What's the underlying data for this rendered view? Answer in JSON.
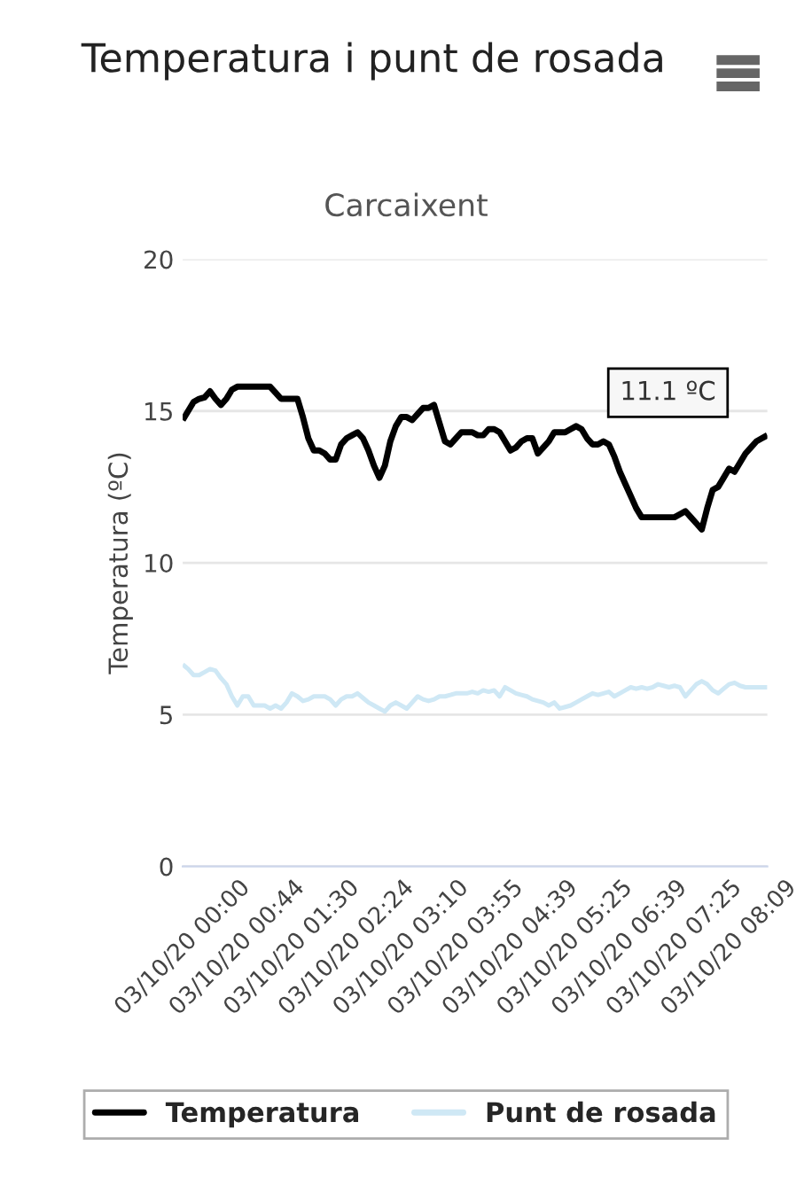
{
  "chart_data": {
    "type": "line",
    "title": "Temperatura i punt de rosada",
    "subtitle": "Carcaixent",
    "ylabel": "Temperatura (ºC)",
    "categories": [
      "03/10/20 00:00",
      null,
      null,
      null,
      null,
      null,
      null,
      null,
      null,
      null,
      "03/10/20 00:44",
      null,
      null,
      null,
      null,
      null,
      null,
      null,
      null,
      null,
      "03/10/20 01:30",
      null,
      null,
      null,
      null,
      null,
      null,
      null,
      null,
      null,
      "03/10/20 02:24",
      null,
      null,
      null,
      null,
      null,
      null,
      null,
      null,
      null,
      "03/10/20 03:10",
      null,
      null,
      null,
      null,
      null,
      null,
      null,
      null,
      null,
      "03/10/20 03:55",
      null,
      null,
      null,
      null,
      null,
      null,
      null,
      null,
      null,
      "03/10/20 04:39",
      null,
      null,
      null,
      null,
      null,
      null,
      null,
      null,
      null,
      "03/10/20 05:25",
      null,
      null,
      null,
      null,
      null,
      null,
      null,
      null,
      null,
      "03/10/20 06:39",
      null,
      null,
      null,
      null,
      null,
      null,
      null,
      null,
      null,
      "03/10/20 07:25",
      null,
      null,
      null,
      null,
      null,
      null,
      null,
      null,
      null,
      "03/10/20 08:09",
      null,
      null,
      null,
      null,
      null,
      null,
      null
    ],
    "series": [
      {
        "name": "Temperatura",
        "color": "#000000",
        "values": [
          14.7,
          15.0,
          15.3,
          15.4,
          15.45,
          15.65,
          15.4,
          15.2,
          15.4,
          15.7,
          15.8,
          15.8,
          15.8,
          15.8,
          15.8,
          15.8,
          15.8,
          15.6,
          15.4,
          15.4,
          15.4,
          15.4,
          14.8,
          14.1,
          13.7,
          13.7,
          13.6,
          13.4,
          13.4,
          13.9,
          14.1,
          14.2,
          14.3,
          14.1,
          13.7,
          13.2,
          12.8,
          13.2,
          14.0,
          14.5,
          14.8,
          14.8,
          14.7,
          14.9,
          15.1,
          15.1,
          15.2,
          14.6,
          14.0,
          13.9,
          14.1,
          14.3,
          14.3,
          14.3,
          14.2,
          14.2,
          14.4,
          14.4,
          14.3,
          14.0,
          13.7,
          13.8,
          14.0,
          14.1,
          14.1,
          13.6,
          13.8,
          14.0,
          14.3,
          14.3,
          14.3,
          14.4,
          14.5,
          14.4,
          14.1,
          13.9,
          13.9,
          14.0,
          13.9,
          13.5,
          13.0,
          12.6,
          12.2,
          11.8,
          11.5,
          11.5,
          11.5,
          11.5,
          11.5,
          11.5,
          11.5,
          11.6,
          11.7,
          11.5,
          11.3,
          11.1,
          11.8,
          12.4,
          12.5,
          12.8,
          13.1,
          13.0,
          13.3,
          13.6,
          13.8,
          14.0,
          14.1,
          14.2
        ]
      },
      {
        "name": "Punt de rosada",
        "color": "#cfe8f5",
        "values": [
          6.65,
          6.5,
          6.3,
          6.3,
          6.4,
          6.5,
          6.45,
          6.2,
          6.0,
          5.6,
          5.3,
          5.6,
          5.6,
          5.3,
          5.3,
          5.3,
          5.2,
          5.3,
          5.2,
          5.4,
          5.7,
          5.6,
          5.45,
          5.5,
          5.6,
          5.6,
          5.6,
          5.5,
          5.3,
          5.5,
          5.6,
          5.6,
          5.7,
          5.55,
          5.4,
          5.3,
          5.2,
          5.1,
          5.3,
          5.4,
          5.3,
          5.2,
          5.4,
          5.6,
          5.5,
          5.45,
          5.5,
          5.6,
          5.6,
          5.65,
          5.7,
          5.7,
          5.7,
          5.75,
          5.7,
          5.8,
          5.75,
          5.8,
          5.6,
          5.9,
          5.8,
          5.7,
          5.65,
          5.6,
          5.5,
          5.45,
          5.4,
          5.3,
          5.4,
          5.2,
          5.25,
          5.3,
          5.4,
          5.5,
          5.6,
          5.7,
          5.65,
          5.7,
          5.75,
          5.6,
          5.7,
          5.8,
          5.9,
          5.85,
          5.9,
          5.85,
          5.9,
          6.0,
          5.95,
          5.9,
          5.95,
          5.9,
          5.6,
          5.8,
          6.0,
          6.1,
          6.0,
          5.8,
          5.7,
          5.85,
          6.0,
          6.05,
          5.95,
          5.9,
          5.9,
          5.9,
          5.9,
          5.9
        ]
      }
    ],
    "ylim": [
      0,
      20
    ],
    "yticks": [
      0,
      5,
      10,
      15,
      20
    ],
    "grid": "y",
    "legend": "bottom",
    "annotations": [
      "11.1 ºC"
    ]
  }
}
